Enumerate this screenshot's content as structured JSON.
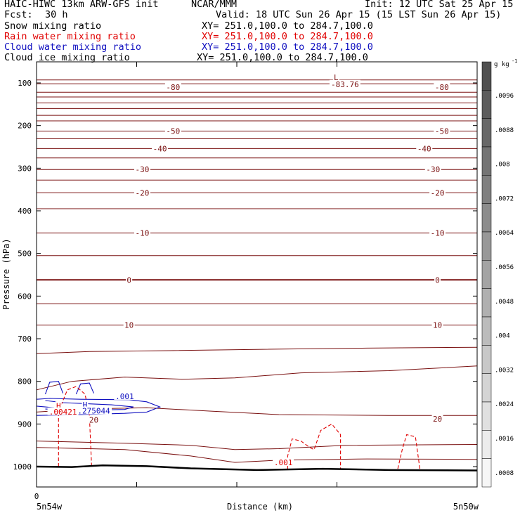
{
  "header": {
    "model": "HAIC-HIWC 13km ARW-GFS init",
    "org": "NCAR/MMM",
    "init": "Init: 12 UTC Sat 25 Apr 15",
    "fcst_label": "Fcst:",
    "fcst_value": "30 h",
    "valid": "Valid: 18 UTC Sun 26 Apr 15 (15 LST Sun 26 Apr 15)"
  },
  "fields": [
    {
      "name": "Snow mixing ratio",
      "xy": "XY= 251.0,100.0 to 284.7,100.0",
      "color": "#000000"
    },
    {
      "name": "Rain water mixing ratio",
      "xy": "XY= 251.0,100.0 to 284.7,100.0",
      "color": "#e00000"
    },
    {
      "name": "Cloud water mixing ratio",
      "xy": "XY= 251.0,100.0 to 284.7,100.0",
      "color": "#1010c0"
    },
    {
      "name": "Cloud ice mixing ratio",
      "xy": "XY= 251.0,100.0 to 284.7,100.0",
      "color": "#000000"
    }
  ],
  "colors": {
    "temperature": "#7a1010",
    "rain": "#e00000",
    "cloud_water": "#1010c0",
    "terrain": "#000000"
  },
  "chart_data": {
    "type": "line",
    "xlabel": "Distance (km)",
    "ylabel": "Pressure (hPa)",
    "x_tick_zero": "0",
    "x_left_label": "5n54w",
    "x_right_label": "5n50w",
    "y_ticks": [
      100,
      200,
      300,
      400,
      500,
      600,
      700,
      800,
      900,
      1000
    ],
    "colorbar_unit": "g kg",
    "colorbar_unit_exp": "-1",
    "colorbar_labels": [
      ".0096",
      ".0088",
      ".008",
      ".0072",
      ".0064",
      ".0056",
      ".0048",
      ".004",
      ".0032",
      ".0024",
      ".0016",
      ".0008"
    ],
    "colorbar_shades": [
      "#505050",
      "#5c5c5c",
      "#686868",
      "#747474",
      "#808080",
      "#8c8c8c",
      "#989898",
      "#a4a4a4",
      "#b0b0b0",
      "#bcbcbc",
      "#c8c8c8",
      "#d4d4d4",
      "#e0e0e0",
      "#ececec",
      "#f6f6f6"
    ],
    "temperature_labels": [
      {
        "text": "-80",
        "x": 0.31,
        "p": 110
      },
      {
        "text": "-80",
        "x": 0.92,
        "p": 110
      },
      {
        "text": "-83.76",
        "x": 0.7,
        "p": 103
      },
      {
        "text": "L",
        "x": 0.68,
        "p": 87
      },
      {
        "text": "-50",
        "x": 0.31,
        "p": 213
      },
      {
        "text": "-50",
        "x": 0.92,
        "p": 213
      },
      {
        "text": "-40",
        "x": 0.28,
        "p": 254
      },
      {
        "text": "-40",
        "x": 0.88,
        "p": 254
      },
      {
        "text": "-30",
        "x": 0.24,
        "p": 303
      },
      {
        "text": "-30",
        "x": 0.9,
        "p": 303
      },
      {
        "text": "-20",
        "x": 0.24,
        "p": 358
      },
      {
        "text": "-20",
        "x": 0.91,
        "p": 358
      },
      {
        "text": "-10",
        "x": 0.24,
        "p": 452
      },
      {
        "text": "-10",
        "x": 0.91,
        "p": 452
      },
      {
        "text": "0",
        "x": 0.21,
        "p": 562
      },
      {
        "text": "0",
        "x": 0.91,
        "p": 562
      },
      {
        "text": "10",
        "x": 0.21,
        "p": 668
      },
      {
        "text": "10",
        "x": 0.91,
        "p": 668
      },
      {
        "text": "20",
        "x": 0.13,
        "p": 890
      },
      {
        "text": "20",
        "x": 0.91,
        "p": 888
      }
    ],
    "cloud_labels": [
      {
        "text": ".001",
        "x": 0.2,
        "p": 835
      },
      {
        "text": "H",
        "x": 0.11,
        "p": 855
      },
      {
        "text": ".275044",
        "x": 0.13,
        "p": 869
      }
    ],
    "rain_labels": [
      {
        "text": "H",
        "x": 0.05,
        "p": 857
      },
      {
        "text": ".00421",
        "x": 0.06,
        "p": 871
      },
      {
        "text": ".001",
        "x": 0.56,
        "p": 990
      }
    ]
  }
}
